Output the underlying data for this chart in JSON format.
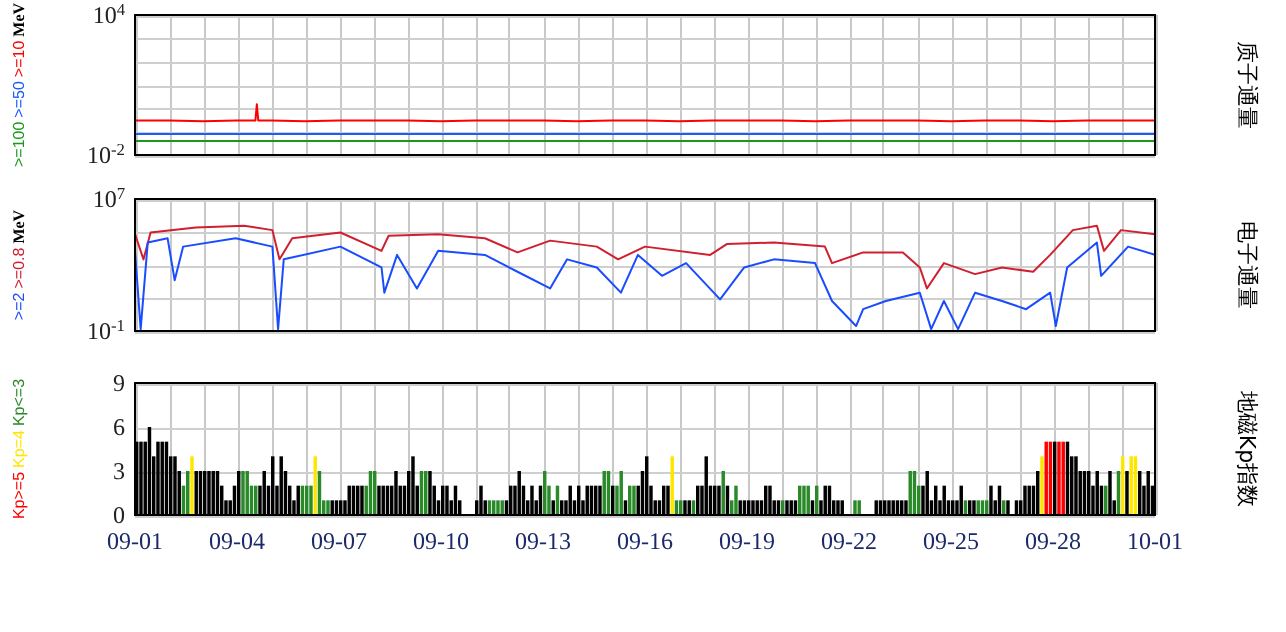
{
  "chart_data": [
    {
      "type": "line",
      "y2label": "质子通量",
      "ylabel": "MeV",
      "legend": "left",
      "log": "y",
      "grid": true,
      "tick_labels": "y",
      "xlim": [
        "--09-01",
        "--10-01"
      ],
      "ylim": [
        0.01,
        10000
      ],
      "yticks": [
        {
          "value": 0.01,
          "label": "10$^{-2}$"
        },
        {
          "value": 0.1,
          "label": null
        },
        {
          "value": 1,
          "label": null
        },
        {
          "value": 10,
          "label": null
        },
        {
          "value": 100,
          "label": null
        },
        {
          "value": 1000,
          "label": null
        },
        {
          "value": 10000,
          "label": "10$^{4}$"
        }
      ],
      "xticks": [
        {
          "value": "--09-01",
          "label": null
        },
        {
          "value": "--09-02",
          "label": null
        },
        {
          "value": "--09-03",
          "label": null
        },
        {
          "value": "--09-04",
          "label": null
        },
        {
          "value": "--09-05",
          "label": null
        },
        {
          "value": "--09-06",
          "label": null
        },
        {
          "value": "--09-07",
          "label": null
        },
        {
          "value": "--09-08",
          "label": null
        },
        {
          "value": "--09-09",
          "label": null
        },
        {
          "value": "--09-10",
          "label": null
        },
        {
          "value": "--09-11",
          "label": null
        },
        {
          "value": "--09-12",
          "label": null
        },
        {
          "value": "--09-13",
          "label": null
        },
        {
          "value": "--09-14",
          "label": null
        },
        {
          "value": "--09-15",
          "label": null
        },
        {
          "value": "--09-16",
          "label": null
        },
        {
          "value": "--09-17",
          "label": null
        },
        {
          "value": "--09-18",
          "label": null
        },
        {
          "value": "--09-19",
          "label": null
        },
        {
          "value": "--09-20",
          "label": null
        },
        {
          "value": "--09-21",
          "label": null
        },
        {
          "value": "--09-22",
          "label": null
        },
        {
          "value": "--09-23",
          "label": null
        },
        {
          "value": "--09-24",
          "label": null
        },
        {
          "value": "--09-25",
          "label": null
        },
        {
          "value": "--09-26",
          "label": null
        },
        {
          "value": "--09-27",
          "label": null
        },
        {
          "value": "--09-28",
          "label": null
        },
        {
          "value": "--09-29",
          "label": null
        },
        {
          "value": "--09-30",
          "label": null
        },
        {
          "value": "--10-01",
          "label": null
        }
      ],
      "x": [
        "--09-01T00:00",
        "--09-02T00:00",
        "--09-03T00:00",
        "--09-04T00:00",
        "--09-04T13:00",
        "--09-04T14:00",
        "--09-04T15:00",
        "--09-05T00:00",
        "--09-06T00:00",
        "--09-07T00:00",
        "--09-08T00:00",
        "--09-09T00:00",
        "--09-10T00:00",
        "--09-11T00:00",
        "--09-12T00:00",
        "--09-13T00:00",
        "--09-14T00:00",
        "--09-15T00:00",
        "--09-16T00:00",
        "--09-17T00:00",
        "--09-18T00:00",
        "--09-19T00:00",
        "--09-20T00:00",
        "--09-21T00:00",
        "--09-22T00:00",
        "--09-23T00:00",
        "--09-24T00:00",
        "--09-25T00:00",
        "--09-26T00:00",
        "--09-27T00:00",
        "--09-28T00:00",
        "--09-29T00:00",
        "--09-30T00:00",
        "--10-01T00:00"
      ],
      "series": [
        {
          "name": ">=10",
          "color": "#ff0000",
          "values": [
            0.3,
            0.3,
            0.28,
            0.3,
            0.3,
            1.5,
            0.3,
            0.3,
            0.28,
            0.3,
            0.3,
            0.3,
            0.28,
            0.3,
            0.3,
            0.3,
            0.28,
            0.3,
            0.3,
            0.28,
            0.3,
            0.3,
            0.3,
            0.28,
            0.3,
            0.3,
            0.3,
            0.28,
            0.3,
            0.3,
            0.28,
            0.3,
            0.3,
            0.3
          ]
        },
        {
          "name": ">=50",
          "color": "#1a5cff",
          "values": [
            0.08,
            0.08,
            0.08,
            0.08,
            0.08,
            0.08,
            0.08,
            0.08,
            0.08,
            0.08,
            0.08,
            0.08,
            0.08,
            0.08,
            0.08,
            0.08,
            0.08,
            0.08,
            0.08,
            0.08,
            0.08,
            0.08,
            0.08,
            0.08,
            0.08,
            0.08,
            0.08,
            0.08,
            0.08,
            0.08,
            0.08,
            0.08,
            0.08,
            0.08
          ]
        },
        {
          "name": ">=100",
          "color": "#1a9a1a",
          "values": [
            0.04,
            0.04,
            0.04,
            0.04,
            0.04,
            0.04,
            0.04,
            0.04,
            0.04,
            0.04,
            0.04,
            0.04,
            0.04,
            0.04,
            0.04,
            0.04,
            0.04,
            0.04,
            0.04,
            0.04,
            0.04,
            0.04,
            0.04,
            0.04,
            0.04,
            0.04,
            0.04,
            0.04,
            0.04,
            0.04,
            0.04,
            0.04,
            0.04,
            0.04
          ]
        }
      ]
    },
    {
      "type": "line",
      "y2label": "电子通量",
      "ylabel": "MeV",
      "legend": "left",
      "log": "y",
      "grid": true,
      "tick_labels": "y",
      "xlim": [
        "--09-01",
        "--10-01"
      ],
      "ylim": [
        0.1,
        10000000
      ],
      "yticks": [
        {
          "value": 0.1,
          "label": "10$^{-1}$"
        },
        {
          "value": 10,
          "label": null
        },
        {
          "value": 1000,
          "label": null
        },
        {
          "value": 100000,
          "label": null
        },
        {
          "value": 10000000,
          "label": "10$^{7}$"
        }
      ],
      "xticks": [
        {
          "value": "--09-01",
          "label": null
        },
        {
          "value": "--09-02",
          "label": null
        },
        {
          "value": "--09-03",
          "label": null
        },
        {
          "value": "--09-04",
          "label": null
        },
        {
          "value": "--09-05",
          "label": null
        },
        {
          "value": "--09-06",
          "label": null
        },
        {
          "value": "--09-07",
          "label": null
        },
        {
          "value": "--09-08",
          "label": null
        },
        {
          "value": "--09-09",
          "label": null
        },
        {
          "value": "--09-10",
          "label": null
        },
        {
          "value": "--09-11",
          "label": null
        },
        {
          "value": "--09-12",
          "label": null
        },
        {
          "value": "--09-13",
          "label": null
        },
        {
          "value": "--09-14",
          "label": null
        },
        {
          "value": "--09-15",
          "label": null
        },
        {
          "value": "--09-16",
          "label": null
        },
        {
          "value": "--09-17",
          "label": null
        },
        {
          "value": "--09-18",
          "label": null
        },
        {
          "value": "--09-19",
          "label": null
        },
        {
          "value": "--09-20",
          "label": null
        },
        {
          "value": "--09-21",
          "label": null
        },
        {
          "value": "--09-22",
          "label": null
        },
        {
          "value": "--09-23",
          "label": null
        },
        {
          "value": "--09-24",
          "label": null
        },
        {
          "value": "--09-25",
          "label": null
        },
        {
          "value": "--09-26",
          "label": null
        },
        {
          "value": "--09-27",
          "label": null
        },
        {
          "value": "--09-28",
          "label": null
        },
        {
          "value": "--09-29",
          "label": null
        },
        {
          "value": "--09-30",
          "label": null
        },
        {
          "value": "--10-01",
          "label": null
        }
      ],
      "series": [
        {
          "name": ">=0.8",
          "color": "#d02030",
          "x": [
            "--09-01T00:00",
            "--09-01T06:00",
            "--09-01T11:00",
            "--09-02T19:00",
            "--09-04T05:00",
            "--09-05T01:00",
            "--09-05T06:00",
            "--09-05T15:00",
            "--09-07T01:00",
            "--09-08T06:00",
            "--09-08T11:00",
            "--09-09T22:00",
            "--09-11T07:00",
            "--09-12T06:00",
            "--09-13T05:00",
            "--09-14T14:00",
            "--09-15T05:00",
            "--09-16T00:00",
            "--09-17T22:00",
            "--09-18T10:00",
            "--09-19T19:00",
            "--09-21T07:00",
            "--09-21T12:00",
            "--09-22T10:00",
            "--09-23T14:00",
            "--09-24T02:00",
            "--09-24T07:00",
            "--09-24T19:00",
            "--09-25T17:00",
            "--09-26T12:00",
            "--09-27T10:00",
            "--09-27T22:00",
            "--09-28T14:00",
            "--09-29T07:00",
            "--09-29T12:00",
            "--09-30T00:00",
            "--10-01T00:00"
          ],
          "values": [
            74000,
            2200,
            93000,
            190000,
            240000,
            130000,
            2200,
            42000,
            93000,
            7200,
            59000,
            74000,
            42000,
            5800,
            30000,
            13000,
            2200,
            13000,
            4100,
            19000,
            23000,
            13000,
            1300,
            5800,
            5800,
            710,
            38,
            1300,
            280,
            710,
            390,
            4100,
            130000,
            240000,
            7200,
            130000,
            74000
          ]
        },
        {
          "name": ">=2",
          "color": "#1a4cff",
          "x": [
            "--09-01T00:00",
            "--09-01T04:00",
            "--09-01T09:00",
            "--09-01T23:00",
            "--09-02T04:00",
            "--09-02T10:00",
            "--09-03T23:00",
            "--09-05T01:00",
            "--09-05T05:00",
            "--09-05T09:00",
            "--09-07T01:00",
            "--09-08T06:00",
            "--09-08T08:00",
            "--09-08T17:00",
            "--09-09T07:00",
            "--09-09T22:00",
            "--09-11T07:00",
            "--09-12T06:00",
            "--09-13T05:00",
            "--09-13T17:00",
            "--09-14T14:00",
            "--09-15T07:00",
            "--09-15T19:00",
            "--09-16T12:00",
            "--09-17T05:00",
            "--09-18T05:00",
            "--09-18T22:00",
            "--09-19T19:00",
            "--09-21T00:00",
            "--09-21T12:00",
            "--09-22T05:00",
            "--09-22T10:00",
            "--09-23T02:00",
            "--09-24T02:00",
            "--09-24T10:00",
            "--09-24T19:00",
            "--09-25T05:00",
            "--09-25T17:00",
            "--09-26T12:00",
            "--09-27T05:00",
            "--09-27T22:00",
            "--09-28T02:00",
            "--09-28T10:00",
            "--09-29T07:00",
            "--09-29T10:00",
            "--09-30T05:00",
            "--10-01T00:00"
          ],
          "values": [
            7200,
            0.13,
            23000,
            42000,
            120,
            13000,
            42000,
            13000,
            0.13,
            2200,
            13000,
            710,
            21,
            4100,
            38,
            7200,
            4100,
            390,
            38,
            2200,
            710,
            21,
            4100,
            220,
            1300,
            8.3,
            710,
            2200,
            1300,
            6.6,
            0.2,
            2.1,
            6.6,
            21,
            0.13,
            6.6,
            0.13,
            21,
            6.6,
            2.1,
            21,
            0.2,
            710,
            23000,
            220,
            13000,
            4100
          ]
        }
      ]
    },
    {
      "type": "bar",
      "y2label": "地磁Kp指数",
      "legend": "left",
      "grid": true,
      "xlim": [
        "--09-01",
        "--10-01"
      ],
      "ylim": [
        0,
        9
      ],
      "yticks": [
        0,
        3,
        6,
        9
      ],
      "xticks": [
        {
          "value": "--09-01",
          "label": "09-01"
        },
        {
          "value": "--09-02",
          "label": null
        },
        {
          "value": "--09-03",
          "label": null
        },
        {
          "value": "--09-04",
          "label": "09-04"
        },
        {
          "value": "--09-05",
          "label": null
        },
        {
          "value": "--09-06",
          "label": null
        },
        {
          "value": "--09-07",
          "label": "09-07"
        },
        {
          "value": "--09-08",
          "label": null
        },
        {
          "value": "--09-09",
          "label": null
        },
        {
          "value": "--09-10",
          "label": "09-10"
        },
        {
          "value": "--09-11",
          "label": null
        },
        {
          "value": "--09-12",
          "label": null
        },
        {
          "value": "--09-13",
          "label": "09-13"
        },
        {
          "value": "--09-14",
          "label": null
        },
        {
          "value": "--09-15",
          "label": null
        },
        {
          "value": "--09-16",
          "label": "09-16"
        },
        {
          "value": "--09-17",
          "label": null
        },
        {
          "value": "--09-18",
          "label": null
        },
        {
          "value": "--09-19",
          "label": "09-19"
        },
        {
          "value": "--09-20",
          "label": null
        },
        {
          "value": "--09-21",
          "label": null
        },
        {
          "value": "--09-22",
          "label": "09-22"
        },
        {
          "value": "--09-23",
          "label": null
        },
        {
          "value": "--09-24",
          "label": null
        },
        {
          "value": "--09-25",
          "label": "09-25"
        },
        {
          "value": "--09-26",
          "label": null
        },
        {
          "value": "--09-27",
          "label": null
        },
        {
          "value": "--09-28",
          "label": "09-28"
        },
        {
          "value": "--09-29",
          "label": null
        },
        {
          "value": "--09-30",
          "label": null
        },
        {
          "value": "--10-01",
          "label": "10-01"
        }
      ],
      "x": [
        "--09-01T01:30",
        "--09-01T04:30",
        "--09-01T07:30",
        "--09-01T10:30",
        "--09-01T13:30",
        "--09-01T16:30",
        "--09-01T19:30",
        "--09-01T22:30",
        "--09-02T01:30",
        "--09-02T04:30",
        "--09-02T07:30",
        "--09-02T10:30",
        "--09-02T13:30",
        "--09-02T16:30",
        "--09-02T19:30",
        "--09-02T22:30",
        "--09-03T01:30",
        "--09-03T04:30",
        "--09-03T07:30",
        "--09-03T10:30",
        "--09-03T13:30",
        "--09-03T16:30",
        "--09-03T19:30",
        "--09-03T22:30",
        "--09-04T01:30",
        "--09-04T04:30",
        "--09-04T07:30",
        "--09-04T10:30",
        "--09-04T13:30",
        "--09-04T16:30",
        "--09-04T19:30",
        "--09-04T22:30",
        "--09-05T01:30",
        "--09-05T04:30",
        "--09-05T07:30",
        "--09-05T10:30",
        "--09-05T13:30",
        "--09-05T16:30",
        "--09-05T19:30",
        "--09-05T22:30",
        "--09-06T01:30",
        "--09-06T04:30",
        "--09-06T07:30",
        "--09-06T10:30",
        "--09-06T13:30",
        "--09-06T16:30",
        "--09-06T19:30",
        "--09-06T22:30",
        "--09-07T01:30",
        "--09-07T04:30",
        "--09-07T07:30",
        "--09-07T10:30",
        "--09-07T13:30",
        "--09-07T16:30",
        "--09-07T19:30",
        "--09-07T22:30",
        "--09-08T01:30",
        "--09-08T04:30",
        "--09-08T07:30",
        "--09-08T10:30",
        "--09-08T13:30",
        "--09-08T16:30",
        "--09-08T19:30",
        "--09-08T22:30",
        "--09-09T01:30",
        "--09-09T04:30",
        "--09-09T07:30",
        "--09-09T10:30",
        "--09-09T13:30",
        "--09-09T16:30",
        "--09-09T19:30",
        "--09-09T22:30",
        "--09-10T01:30",
        "--09-10T04:30",
        "--09-10T07:30",
        "--09-10T10:30",
        "--09-10T13:30",
        "--09-10T16:30",
        "--09-10T19:30",
        "--09-10T22:30",
        "--09-11T01:30",
        "--09-11T04:30",
        "--09-11T07:30",
        "--09-11T10:30",
        "--09-11T13:30",
        "--09-11T16:30",
        "--09-11T19:30",
        "--09-11T22:30",
        "--09-12T01:30",
        "--09-12T04:30",
        "--09-12T07:30",
        "--09-12T10:30",
        "--09-12T13:30",
        "--09-12T16:30",
        "--09-12T19:30",
        "--09-12T22:30",
        "--09-13T01:30",
        "--09-13T04:30",
        "--09-13T07:30",
        "--09-13T10:30",
        "--09-13T13:30",
        "--09-13T16:30",
        "--09-13T19:30",
        "--09-13T22:30",
        "--09-14T01:30",
        "--09-14T04:30",
        "--09-14T07:30",
        "--09-14T10:30",
        "--09-14T13:30",
        "--09-14T16:30",
        "--09-14T19:30",
        "--09-14T22:30",
        "--09-15T01:30",
        "--09-15T04:30",
        "--09-15T07:30",
        "--09-15T10:30",
        "--09-15T13:30",
        "--09-15T16:30",
        "--09-15T19:30",
        "--09-15T22:30",
        "--09-16T01:30",
        "--09-16T04:30",
        "--09-16T07:30",
        "--09-16T10:30",
        "--09-16T13:30",
        "--09-16T16:30",
        "--09-16T19:30",
        "--09-16T22:30",
        "--09-17T01:30",
        "--09-17T04:30",
        "--09-17T07:30",
        "--09-17T10:30",
        "--09-17T13:30",
        "--09-17T16:30",
        "--09-17T19:30",
        "--09-17T22:30",
        "--09-18T01:30",
        "--09-18T04:30",
        "--09-18T07:30",
        "--09-18T10:30",
        "--09-18T13:30",
        "--09-18T16:30",
        "--09-18T19:30",
        "--09-18T22:30",
        "--09-19T01:30",
        "--09-19T04:30",
        "--09-19T07:30",
        "--09-19T10:30",
        "--09-19T13:30",
        "--09-19T16:30",
        "--09-19T19:30",
        "--09-19T22:30",
        "--09-20T01:30",
        "--09-20T04:30",
        "--09-20T07:30",
        "--09-20T10:30",
        "--09-20T13:30",
        "--09-20T16:30",
        "--09-20T19:30",
        "--09-20T22:30",
        "--09-21T01:30",
        "--09-21T04:30",
        "--09-21T07:30",
        "--09-21T10:30",
        "--09-21T13:30",
        "--09-21T16:30",
        "--09-21T19:30",
        "--09-21T22:30",
        "--09-22T01:30",
        "--09-22T04:30",
        "--09-22T07:30",
        "--09-22T10:30",
        "--09-22T13:30",
        "--09-22T16:30",
        "--09-22T19:30",
        "--09-22T22:30",
        "--09-23T01:30",
        "--09-23T04:30",
        "--09-23T07:30",
        "--09-23T10:30",
        "--09-23T13:30",
        "--09-23T16:30",
        "--09-23T19:30",
        "--09-23T22:30",
        "--09-24T01:30",
        "--09-24T04:30",
        "--09-24T07:30",
        "--09-24T10:30",
        "--09-24T13:30",
        "--09-24T16:30",
        "--09-24T19:30",
        "--09-24T22:30",
        "--09-25T01:30",
        "--09-25T04:30",
        "--09-25T07:30",
        "--09-25T10:30",
        "--09-25T13:30",
        "--09-25T16:30",
        "--09-25T19:30",
        "--09-25T22:30",
        "--09-26T01:30",
        "--09-26T04:30",
        "--09-26T07:30",
        "--09-26T10:30",
        "--09-26T13:30",
        "--09-26T16:30",
        "--09-26T19:30",
        "--09-26T22:30",
        "--09-27T01:30",
        "--09-27T04:30",
        "--09-27T07:30",
        "--09-27T10:30",
        "--09-27T13:30",
        "--09-27T16:30",
        "--09-27T19:30",
        "--09-27T22:30",
        "--09-28T01:30",
        "--09-28T04:30",
        "--09-28T07:30",
        "--09-28T10:30",
        "--09-28T13:30",
        "--09-28T16:30",
        "--09-28T19:30",
        "--09-28T22:30",
        "--09-29T01:30",
        "--09-29T04:30",
        "--09-29T07:30",
        "--09-29T10:30",
        "--09-29T13:30",
        "--09-29T16:30",
        "--09-29T19:30",
        "--09-29T22:30",
        "--09-30T01:30",
        "--09-30T04:30",
        "--09-30T07:30",
        "--09-30T10:30",
        "--09-30T13:30",
        "--09-30T16:30",
        "--09-30T19:30",
        "--09-30T22:30"
      ],
      "series": [
        {
          "color": "#000000",
          "values": [
            5,
            5,
            5,
            6,
            4,
            5,
            5,
            5,
            4,
            4,
            3,
            null,
            null,
            null,
            3,
            3,
            3,
            3,
            3,
            3,
            2,
            1,
            1,
            2,
            3,
            null,
            null,
            null,
            null,
            2,
            3,
            2,
            4,
            2,
            4,
            3,
            2,
            1,
            2,
            null,
            null,
            null,
            null,
            null,
            null,
            null,
            1,
            1,
            1,
            1,
            2,
            2,
            2,
            2,
            null,
            null,
            null,
            2,
            2,
            2,
            2,
            3,
            2,
            2,
            3,
            4,
            2,
            null,
            null,
            3,
            2,
            1,
            2,
            2,
            1,
            2,
            1,
            0,
            0,
            0,
            1,
            2,
            1,
            null,
            null,
            null,
            null,
            1,
            2,
            2,
            3,
            2,
            1,
            2,
            1,
            2,
            null,
            null,
            1,
            null,
            1,
            1,
            2,
            1,
            2,
            1,
            2,
            2,
            2,
            2,
            null,
            null,
            2,
            null,
            null,
            1,
            null,
            null,
            2,
            3,
            4,
            2,
            1,
            1,
            2,
            2,
            null,
            null,
            null,
            1,
            1,
            null,
            2,
            2,
            4,
            2,
            2,
            2,
            null,
            2,
            null,
            null,
            1,
            1,
            1,
            1,
            1,
            1,
            2,
            2,
            1,
            1,
            null,
            1,
            1,
            1,
            null,
            null,
            null,
            1,
            null,
            1,
            2,
            2,
            1,
            1,
            1,
            0,
            0,
            null,
            null,
            0,
            0,
            0,
            1,
            1,
            1,
            1,
            1,
            1,
            1,
            1,
            null,
            null,
            null,
            2,
            3,
            1,
            2,
            1,
            2,
            1,
            1,
            1,
            2,
            null,
            1,
            1,
            null,
            null,
            null,
            2,
            1,
            2,
            null,
            1,
            0,
            1,
            1,
            2,
            2,
            2,
            3,
            null,
            null,
            null,
            5,
            null,
            null,
            5,
            4,
            4,
            3,
            3,
            3,
            2,
            3,
            2,
            null,
            3,
            1,
            null,
            null,
            3,
            null,
            null,
            3,
            2,
            3,
            2
          ]
        },
        {
          "name": "Kp<=3",
          "color": "#2a8a2a",
          "values": [
            null,
            null,
            null,
            null,
            null,
            null,
            null,
            null,
            null,
            null,
            null,
            2,
            3,
            null,
            null,
            null,
            null,
            null,
            null,
            null,
            null,
            null,
            null,
            null,
            null,
            3,
            3,
            2,
            2,
            null,
            null,
            null,
            null,
            null,
            null,
            null,
            null,
            null,
            null,
            2,
            2,
            2,
            null,
            3,
            1,
            1,
            null,
            null,
            null,
            null,
            null,
            null,
            null,
            null,
            2,
            3,
            3,
            null,
            null,
            null,
            null,
            null,
            null,
            null,
            null,
            null,
            null,
            3,
            3,
            null,
            null,
            null,
            null,
            null,
            null,
            null,
            null,
            null,
            null,
            null,
            null,
            null,
            null,
            1,
            1,
            1,
            1,
            null,
            null,
            null,
            null,
            null,
            null,
            null,
            null,
            null,
            3,
            2,
            null,
            2,
            null,
            null,
            null,
            null,
            null,
            null,
            null,
            null,
            null,
            null,
            3,
            3,
            null,
            2,
            3,
            null,
            2,
            2,
            null,
            null,
            null,
            null,
            null,
            null,
            null,
            null,
            null,
            1,
            1,
            null,
            null,
            1,
            null,
            null,
            null,
            null,
            null,
            null,
            3,
            null,
            1,
            2,
            null,
            null,
            null,
            null,
            null,
            null,
            null,
            null,
            null,
            null,
            1,
            null,
            null,
            null,
            2,
            2,
            2,
            null,
            2,
            null,
            null,
            null,
            null,
            null,
            null,
            null,
            null,
            1,
            1,
            null,
            null,
            null,
            null,
            null,
            null,
            null,
            null,
            null,
            null,
            null,
            3,
            3,
            2,
            null,
            null,
            null,
            null,
            null,
            null,
            null,
            null,
            null,
            null,
            1,
            null,
            null,
            1,
            1,
            1,
            null,
            null,
            null,
            1,
            null,
            null,
            null,
            null,
            null,
            null,
            null,
            null,
            null,
            null,
            null,
            null,
            null,
            null,
            null,
            null,
            null,
            null,
            null,
            null,
            null,
            null,
            null,
            2,
            null,
            null,
            3,
            null,
            null,
            null,
            null,
            null,
            null,
            null,
            null
          ]
        },
        {
          "name": "Kp=4",
          "color": "#ffe600",
          "x": [
            "--09-02T16:30",
            "--09-06T07:30",
            "--09-16T19:30",
            "--09-27T16:30",
            "--09-30T01:30",
            "--09-30T07:30",
            "--09-30T10:30"
          ],
          "values": [
            4,
            4,
            4,
            4,
            4,
            4,
            4
          ]
        },
        {
          "name": "Kp>=5",
          "color": "#ff0000",
          "x": [
            "--09-27T19:30",
            "--09-27T22:30",
            "--09-28T04:30",
            "--09-28T07:30"
          ],
          "values": [
            5,
            5,
            5,
            5
          ]
        }
      ]
    }
  ]
}
